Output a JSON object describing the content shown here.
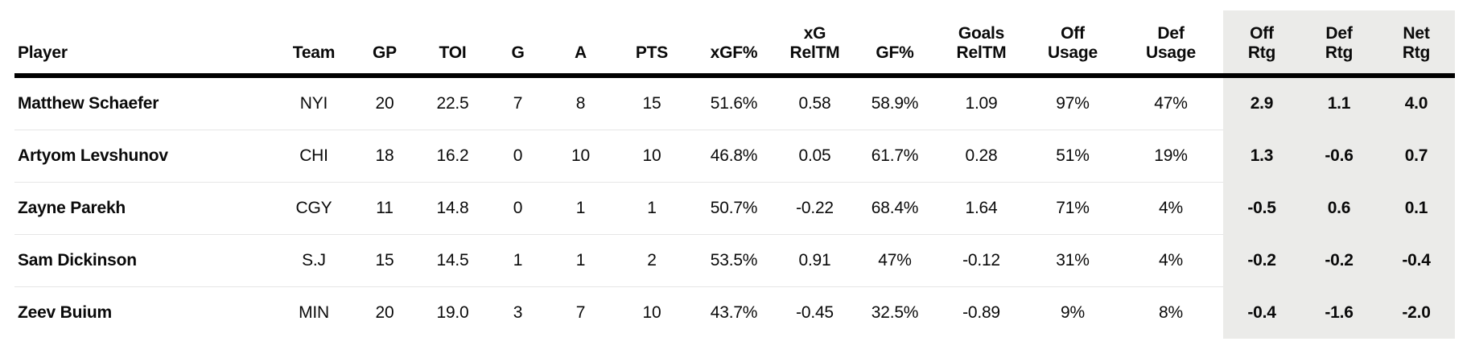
{
  "chart_data": {
    "type": "table",
    "title": "",
    "columns": [
      "Player",
      "Team",
      "GP",
      "TOI",
      "G",
      "A",
      "PTS",
      "xGF%",
      "xG\nRelTM",
      "GF%",
      "Goals\nRelTM",
      "Off\nUsage",
      "Def\nUsage",
      "Off\nRtg",
      "Def\nRtg",
      "Net\nRtg"
    ],
    "highlight_columns": [
      "Off\nRtg",
      "Def\nRtg",
      "Net\nRtg"
    ],
    "rows": [
      [
        "Matthew Schaefer",
        "NYI",
        "20",
        "22.5",
        "7",
        "8",
        "15",
        "51.6%",
        "0.58",
        "58.9%",
        "1.09",
        "97%",
        "47%",
        "2.9",
        "1.1",
        "4.0"
      ],
      [
        "Artyom Levshunov",
        "CHI",
        "18",
        "16.2",
        "0",
        "10",
        "10",
        "46.8%",
        "0.05",
        "61.7%",
        "0.28",
        "51%",
        "19%",
        "1.3",
        "-0.6",
        "0.7"
      ],
      [
        "Zayne Parekh",
        "CGY",
        "11",
        "14.8",
        "0",
        "1",
        "1",
        "50.7%",
        "-0.22",
        "68.4%",
        "1.64",
        "71%",
        "4%",
        "-0.5",
        "0.6",
        "0.1"
      ],
      [
        "Sam Dickinson",
        "S.J",
        "15",
        "14.5",
        "1",
        "1",
        "2",
        "53.5%",
        "0.91",
        "47%",
        "-0.12",
        "31%",
        "4%",
        "-0.2",
        "-0.2",
        "-0.4"
      ],
      [
        "Zeev Buium",
        "MIN",
        "20",
        "19.0",
        "3",
        "7",
        "10",
        "43.7%",
        "-0.45",
        "32.5%",
        "-0.89",
        "9%",
        "8%",
        "-0.4",
        "-1.6",
        "-2.0"
      ]
    ],
    "style": {
      "highlight_bg": "#ebebe9",
      "separator_color": "#e6e6e6",
      "header_rule_color": "#000000",
      "text_color": "#0a0a0a"
    }
  }
}
